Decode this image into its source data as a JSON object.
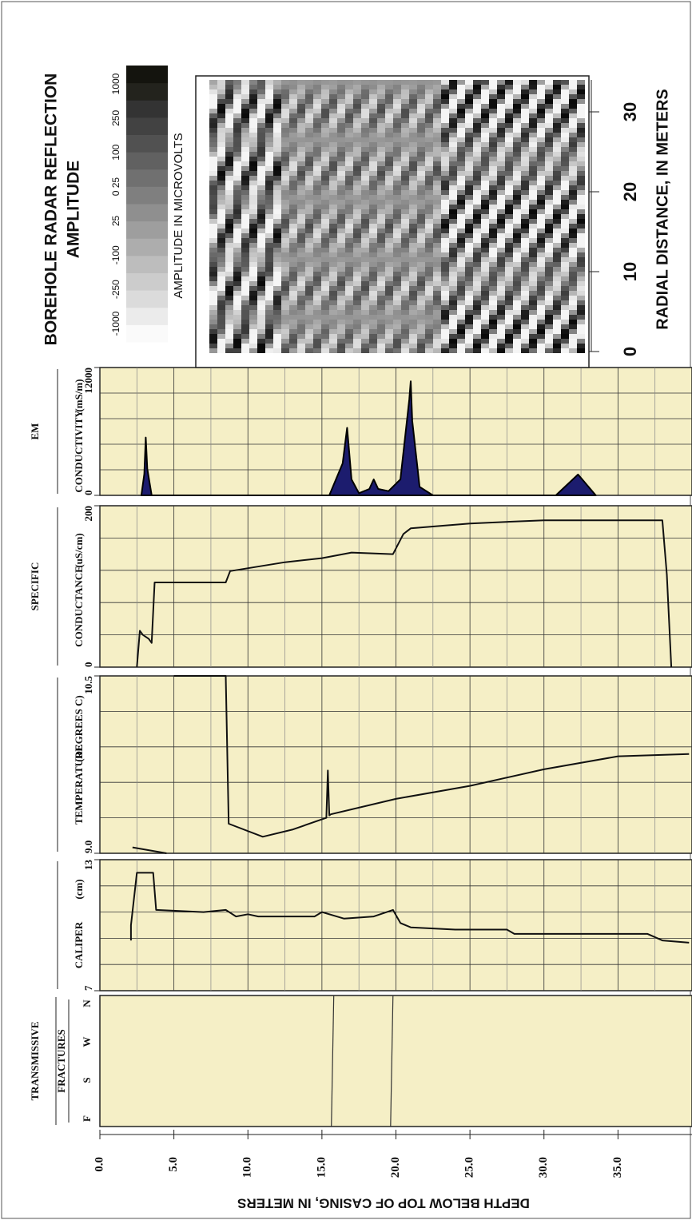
{
  "depth_axis": {
    "label": "DEPTH BELOW TOP OF CASING, IN METERS",
    "lim": [
      0,
      40
    ],
    "ticks": [
      {
        "value": 0,
        "label": "0.0"
      },
      {
        "value": 5,
        "label": "5.0"
      },
      {
        "value": 10,
        "label": "10.0"
      },
      {
        "value": 15,
        "label": "15.0"
      },
      {
        "value": 20,
        "label": "20.0"
      },
      {
        "value": 25,
        "label": "25.0"
      },
      {
        "value": 30,
        "label": "30.0"
      },
      {
        "value": 35,
        "label": "35.0"
      }
    ]
  },
  "radar": {
    "title": [
      "BOREHOLE RADAR REFLECTION",
      "AMPLITUDE"
    ],
    "colorbar_label": "AMPLITUDE IN MICROVOLTS",
    "colorbar_ticks": [
      "-1000",
      "-250",
      "-100",
      "25",
      "0 25",
      "100",
      "250",
      "1000"
    ],
    "axis_label": "RADIAL DISTANCE, IN METERS",
    "lim": [
      0,
      34
    ],
    "ticks": [
      0,
      10,
      20,
      30
    ]
  },
  "tracks": [
    {
      "type": "area",
      "header": "EM",
      "name": "CONDUCTIVITY",
      "units": "(mS/m)",
      "ylim": [
        0,
        12000
      ],
      "yticks": [
        0,
        12000
      ],
      "color": "#1c1c6e",
      "x": [
        2.8,
        3.0,
        3.1,
        3.2,
        3.5,
        15.5,
        16.4,
        16.7,
        17.0,
        17.5,
        18.2,
        18.5,
        18.8,
        19.5,
        20.3,
        20.9,
        21.0,
        21.1,
        21.6,
        22.5,
        30.8,
        32.3,
        33.5
      ],
      "values": [
        0,
        2000,
        5430,
        2500,
        0,
        0,
        3000,
        6340,
        1500,
        200,
        600,
        1500,
        600,
        400,
        1500,
        9000,
        10700,
        7000,
        800,
        0,
        0,
        1960,
        0
      ]
    },
    {
      "type": "line",
      "header": "SPECIFIC",
      "name": "CONDUCTANCE",
      "units": "(uS/cm)",
      "ylim": [
        0,
        200
      ],
      "yticks": [
        0,
        200
      ],
      "color": "#111111",
      "x": [
        2.5,
        2.7,
        2.9,
        3.3,
        3.5,
        3.7,
        8.5,
        8.8,
        12.5,
        15,
        17,
        19.8,
        20.5,
        21,
        25,
        30,
        38,
        38.3,
        38.6
      ],
      "values": [
        0,
        45,
        40,
        35,
        30,
        105,
        105,
        119,
        130,
        135,
        142,
        140,
        165,
        172,
        178,
        182,
        182,
        115,
        0
      ]
    },
    {
      "type": "line",
      "name": "TEMPERATURE",
      "units": "(DEGREES C)",
      "ylim": [
        9.0,
        10.5
      ],
      "yticks": [
        {
          "value": 9.0,
          "label": "9.0"
        },
        10.5
      ],
      "color": "#111111",
      "x": [
        2.2,
        4.5,
        4.6,
        5.0,
        8.5,
        8.7,
        11,
        13,
        15.3,
        15.4,
        15.5,
        15.6,
        20,
        25,
        30,
        35,
        39.8
      ],
      "values": [
        9.05,
        9.0,
        null,
        10.5,
        10.5,
        9.25,
        9.14,
        9.2,
        9.3,
        9.7,
        9.32,
        9.33,
        9.46,
        9.57,
        9.71,
        9.82,
        9.84
      ]
    },
    {
      "type": "line",
      "name": "CALIPER",
      "units": "(cm)",
      "ylim": [
        7,
        13
      ],
      "yticks": [
        7,
        13
      ],
      "color": "#111111",
      "x": [
        2.1,
        2.1,
        2.5,
        3.6,
        3.8,
        7,
        8.5,
        9.2,
        10,
        10.7,
        14.5,
        15,
        16.5,
        18.5,
        19.8,
        20.3,
        21,
        24,
        27.5,
        28,
        31.5,
        32,
        37,
        38,
        39.8
      ],
      "values": [
        9.3,
        10.0,
        12.4,
        12.4,
        10.7,
        10.6,
        10.7,
        10.4,
        10.5,
        10.4,
        10.4,
        10.6,
        10.3,
        10.4,
        10.7,
        10.1,
        9.9,
        9.8,
        9.8,
        9.6,
        9.6,
        9.6,
        9.6,
        9.3,
        9.2
      ]
    },
    {
      "type": "fractures",
      "header": "TRANSMISSIVE",
      "name": "FRACTURES",
      "categories": [
        "F",
        "S",
        "W",
        "N"
      ],
      "depths": [
        15.8,
        19.8
      ]
    }
  ]
}
